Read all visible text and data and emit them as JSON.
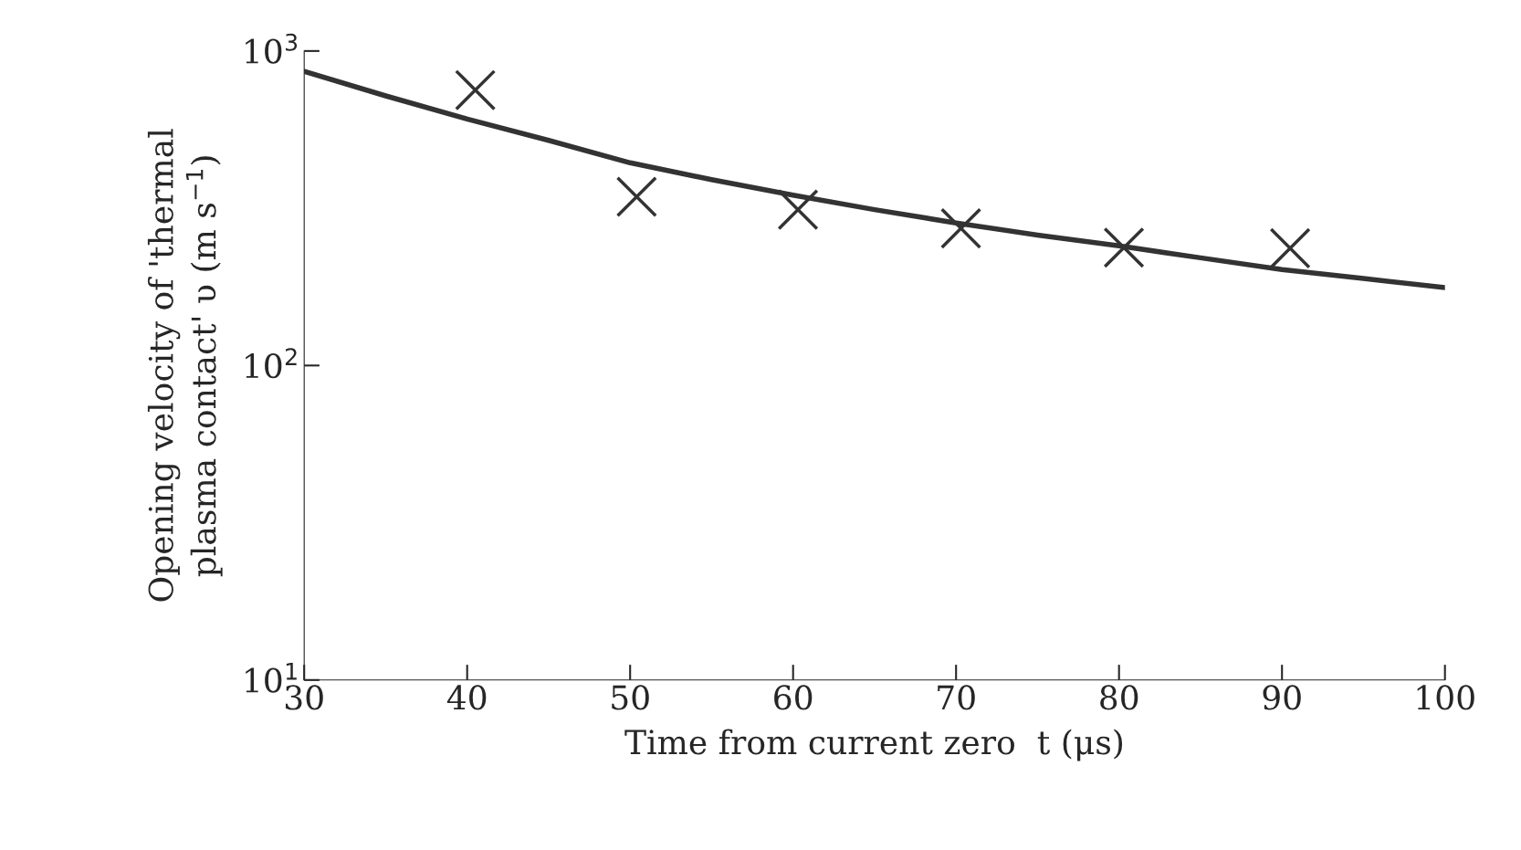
{
  "chart_data": {
    "type": "scatter",
    "xlabel": "Time from current zero  t (μs)",
    "ylabel": "Opening velocity of 'thermal\nplasma contact' υ (m s$^{−1}$)",
    "log": "y",
    "xlim": [
      30,
      100
    ],
    "xticks": [
      30,
      40,
      50,
      60,
      70,
      80,
      90,
      100
    ],
    "ylim": [
      10,
      1000
    ],
    "yticks": [
      {
        "value": 10,
        "label": "10$^{1}$"
      },
      {
        "value": 100,
        "label": "10$^{2}$"
      },
      {
        "value": 1000,
        "label": "10$^{3}$"
      }
    ],
    "grid": false,
    "legend": false,
    "series": [
      {
        "marker": "cross",
        "color": "#333333",
        "x": [
          40.5,
          50.4,
          60.3,
          70.3,
          80.3,
          90.5
        ],
        "values": [
          751,
          344,
          313,
          273,
          237,
          236
        ]
      },
      {
        "type": "line",
        "marker": "none",
        "line_style": "solid",
        "color": "#333333",
        "x": [
          30,
          35,
          40,
          45,
          50,
          55,
          60,
          65,
          70,
          75,
          80,
          85,
          90,
          95,
          100
        ],
        "values": [
          861,
          720,
          608,
          520,
          441,
          390,
          348,
          313,
          284,
          260,
          240,
          220,
          202,
          189,
          177
        ]
      }
    ]
  }
}
